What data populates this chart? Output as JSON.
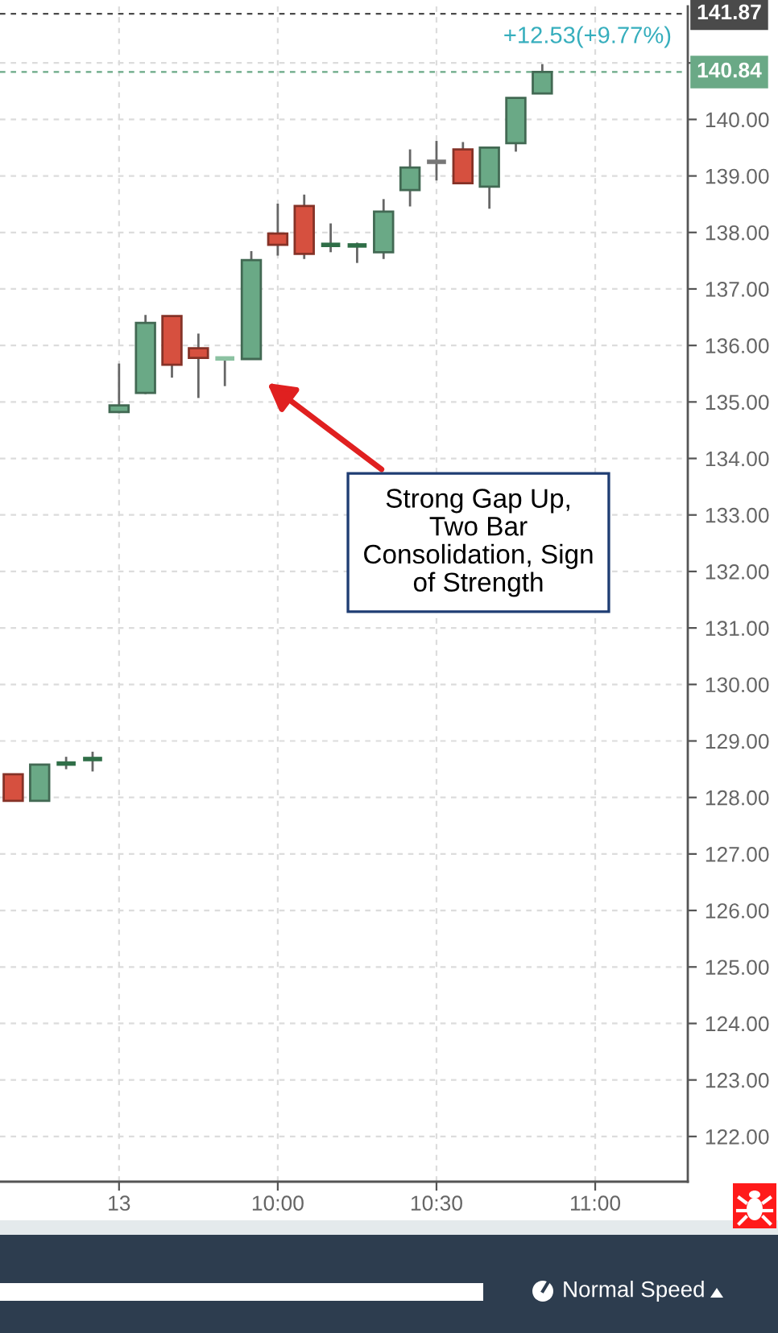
{
  "chart_data": {
    "type": "candlestick",
    "categories": [
      null,
      null,
      null,
      null,
      "13",
      null,
      null,
      null,
      null,
      null,
      "10:00",
      null,
      null,
      null,
      null,
      null,
      "10:30",
      null,
      null,
      null,
      null,
      null,
      "11:00",
      null,
      null,
      null
    ],
    "ohlc": [
      [
        128.41,
        128.41,
        127.94,
        127.94
      ],
      [
        127.94,
        128.58,
        127.94,
        128.58
      ],
      [
        128.6,
        128.72,
        128.5,
        128.6
      ],
      [
        128.68,
        128.81,
        128.46,
        128.68
      ],
      [
        134.82,
        135.68,
        134.8,
        134.94
      ],
      [
        135.16,
        136.54,
        135.14,
        136.4
      ],
      [
        136.52,
        136.52,
        135.43,
        135.66
      ],
      [
        135.95,
        136.21,
        135.07,
        135.78
      ],
      [
        135.77,
        135.8,
        135.28,
        135.77
      ],
      [
        135.76,
        137.67,
        135.76,
        137.51
      ],
      [
        137.98,
        138.51,
        137.59,
        137.78
      ],
      [
        138.47,
        138.67,
        137.53,
        137.62
      ],
      [
        137.78,
        138.16,
        137.65,
        137.78
      ],
      [
        137.77,
        137.82,
        137.46,
        137.77
      ],
      [
        137.65,
        138.59,
        137.53,
        138.37
      ],
      [
        138.75,
        139.47,
        138.46,
        139.15
      ],
      [
        139.25,
        139.62,
        138.92,
        139.25
      ],
      [
        139.47,
        139.6,
        138.87,
        138.87
      ],
      [
        138.81,
        139.5,
        138.42,
        139.5
      ],
      [
        139.58,
        140.38,
        139.43,
        140.38
      ],
      [
        140.46,
        140.98,
        140.46,
        140.84
      ],
      null,
      null,
      null,
      null,
      null
    ],
    "colors": [
      "#d6503f",
      "#6aa986",
      "#2f6e47",
      "#2f6e47",
      "#6aa986",
      "#6aa986",
      "#d6503f",
      "#d6503f",
      "#8cc2a2",
      "#6aa986",
      "#d6503f",
      "#d6503f",
      "#2f6e47",
      "#2f6e47",
      "#6aa986",
      "#6aa986",
      "#777777",
      "#d6503f",
      "#6aa986",
      "#6aa986",
      "#6aa986",
      null,
      null,
      null,
      null,
      null
    ],
    "ylim": [
      121.2,
      142.0
    ],
    "yticks": [
      {
        "value": 122,
        "label": "122.00"
      },
      {
        "value": 123,
        "label": "123.00"
      },
      {
        "value": 124,
        "label": "124.00"
      },
      {
        "value": 125,
        "label": "125.00"
      },
      {
        "value": 126,
        "label": "126.00"
      },
      {
        "value": 127,
        "label": "127.00"
      },
      {
        "value": 128,
        "label": "128.00"
      },
      {
        "value": 129,
        "label": "129.00"
      },
      {
        "value": 130,
        "label": "130.00"
      },
      {
        "value": 131,
        "label": "131.00"
      },
      {
        "value": 132,
        "label": "132.00"
      },
      {
        "value": 133,
        "label": "133.00"
      },
      {
        "value": 134,
        "label": "134.00"
      },
      {
        "value": 135,
        "label": "135.00"
      },
      {
        "value": 136,
        "label": "136.00"
      },
      {
        "value": 137,
        "label": "137.00"
      },
      {
        "value": 138,
        "label": "138.00"
      },
      {
        "value": 139,
        "label": "139.00"
      },
      {
        "value": 140,
        "label": "140.00"
      },
      {
        "value": 141,
        "label": null
      }
    ],
    "ref_lines": [
      {
        "axis": "y",
        "value": 141.87,
        "label": "141.87",
        "color": "#4a4a4a",
        "line_style": "dashed"
      },
      {
        "axis": "y",
        "value": 140.84,
        "label": "140.84",
        "color": "#6aa986",
        "line_style": "dashed"
      }
    ],
    "annotations": [
      "+12.53(+9.77%)",
      "Strong Gap Up,\nTwo Bar\nConsolidation, Sign\nof Strength",
      "Normal Speed"
    ],
    "grid": true
  }
}
